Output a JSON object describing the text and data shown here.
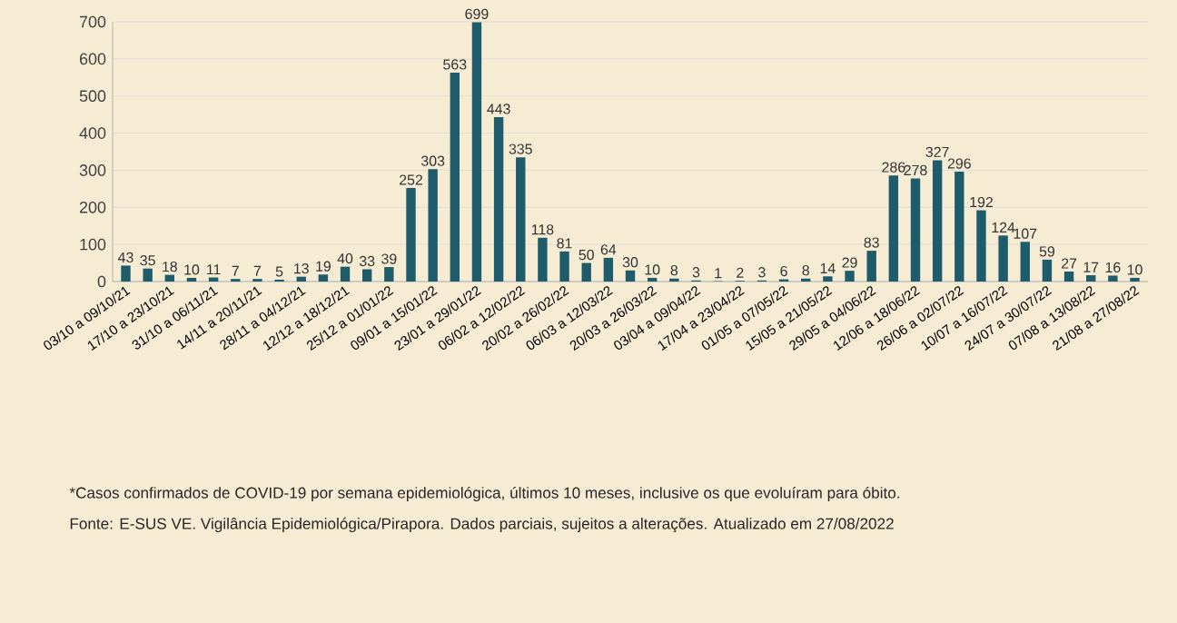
{
  "chart_data": {
    "type": "bar",
    "categories": [
      "03/10 a 09/10/21",
      null,
      "17/10 a 23/10/21",
      null,
      "31/10 a 06/11/21",
      null,
      "14/11 a 20/11/21",
      null,
      "28/11 a 04/12/21",
      null,
      "12/12 a 18/12/21",
      null,
      "25/12 a 01/01/22",
      null,
      "09/01 a 15/01/22",
      null,
      "23/01 a 29/01/22",
      null,
      "06/02 a 12/02/22",
      null,
      "20/02 a 26/02/22",
      null,
      "06/03 a 12/03/22",
      null,
      "20/03 a 26/03/22",
      null,
      "03/04 a 09/04/22",
      null,
      "17/04 a 23/04/22",
      null,
      "01/05 a 07/05/22",
      null,
      "15/05 a 21/05/22",
      null,
      "29/05 a 04/06/22",
      null,
      "12/06 a 18/06/22",
      null,
      "26/06 a 02/07/22",
      null,
      "10/07 a 16/07/22",
      null,
      "24/07 a 30/07/22",
      null,
      "07/08 a 13/08/22",
      null,
      "21/08 a 27/08/22"
    ],
    "values": [
      43,
      35,
      18,
      10,
      11,
      7,
      7,
      5,
      13,
      19,
      40,
      33,
      39,
      252,
      303,
      563,
      699,
      443,
      335,
      118,
      81,
      50,
      64,
      30,
      10,
      8,
      3,
      1,
      2,
      3,
      6,
      8,
      14,
      29,
      83,
      286,
      278,
      327,
      296,
      192,
      124,
      107,
      59,
      27,
      17,
      16,
      10
    ],
    "color": "#1f5c6b",
    "ylim": [
      0,
      700
    ],
    "yticks": [
      0,
      100,
      200,
      300,
      400,
      500,
      600,
      700
    ],
    "grid": "y",
    "data_labels": true,
    "annotations": [
      "*Casos confirmados de COVID-19 por semana epidemiológica, últimos 10 meses, inclusive os que evoluíram para óbito.",
      "Fonte: E-SUS VE. Vigilância Epidemiológica/Pirapora. Dados parciais, sujeitos a alterações. Atualizado em 27/08/2022"
    ]
  }
}
